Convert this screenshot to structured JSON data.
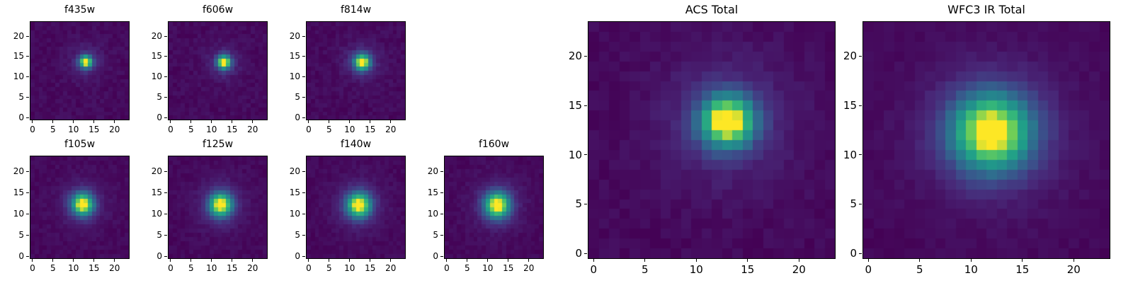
{
  "figure": {
    "background": "#ffffff",
    "text_color": "#000000",
    "colormap": "viridis",
    "viridis_stops": [
      [
        0.0,
        "#440154"
      ],
      [
        0.125,
        "#482878"
      ],
      [
        0.25,
        "#3e4989"
      ],
      [
        0.375,
        "#31688e"
      ],
      [
        0.5,
        "#26828e"
      ],
      [
        0.625,
        "#1f9e89"
      ],
      [
        0.75,
        "#35b779"
      ],
      [
        0.875,
        "#6ece58"
      ],
      [
        1.0,
        "#fde725"
      ]
    ]
  },
  "chart_data": [
    {
      "type": "heatmap",
      "title": "f435w",
      "size": "small",
      "row": 1,
      "col": 1,
      "grid": [
        24,
        24
      ],
      "xticks": [
        0,
        5,
        10,
        15,
        20
      ],
      "yticks": [
        0,
        5,
        10,
        15,
        20
      ],
      "xlim": [
        -0.5,
        23.5
      ],
      "ylim": [
        -0.5,
        23.5
      ],
      "colormap": "viridis",
      "vrange": [
        0,
        1
      ],
      "source_model": {
        "center": [
          13.0,
          13.7
        ],
        "sigma": 1.05,
        "peak": 1.0,
        "halo_amp": 0.12,
        "halo_sigma": 3.0,
        "noise": 0.06,
        "seed": 1
      }
    },
    {
      "type": "heatmap",
      "title": "f606w",
      "size": "small",
      "row": 1,
      "col": 2,
      "grid": [
        24,
        24
      ],
      "xticks": [
        0,
        5,
        10,
        15,
        20
      ],
      "yticks": [
        0,
        5,
        10,
        15,
        20
      ],
      "xlim": [
        -0.5,
        23.5
      ],
      "ylim": [
        -0.5,
        23.5
      ],
      "colormap": "viridis",
      "vrange": [
        0,
        1
      ],
      "source_model": {
        "center": [
          13.0,
          13.6
        ],
        "sigma": 1.15,
        "peak": 1.0,
        "halo_amp": 0.12,
        "halo_sigma": 3.0,
        "noise": 0.06,
        "seed": 2
      }
    },
    {
      "type": "heatmap",
      "title": "f814w",
      "size": "small",
      "row": 1,
      "col": 3,
      "grid": [
        24,
        24
      ],
      "xticks": [
        0,
        5,
        10,
        15,
        20
      ],
      "yticks": [
        0,
        5,
        10,
        15,
        20
      ],
      "xlim": [
        -0.5,
        23.5
      ],
      "ylim": [
        -0.5,
        23.5
      ],
      "colormap": "viridis",
      "vrange": [
        0,
        1
      ],
      "source_model": {
        "center": [
          13.0,
          13.6
        ],
        "sigma": 1.35,
        "peak": 1.0,
        "halo_amp": 0.13,
        "halo_sigma": 3.2,
        "noise": 0.06,
        "seed": 3
      }
    },
    {
      "type": "heatmap",
      "title": "f105w",
      "size": "small",
      "row": 2,
      "col": 1,
      "grid": [
        24,
        24
      ],
      "xticks": [
        0,
        5,
        10,
        15,
        20
      ],
      "yticks": [
        0,
        5,
        10,
        15,
        20
      ],
      "xlim": [
        -0.5,
        23.5
      ],
      "ylim": [
        -0.5,
        23.5
      ],
      "colormap": "viridis",
      "vrange": [
        0,
        1
      ],
      "source_model": {
        "center": [
          12.2,
          12.2
        ],
        "sigma": 1.8,
        "peak": 1.0,
        "halo_amp": 0.12,
        "halo_sigma": 4.0,
        "noise": 0.05,
        "seed": 4
      }
    },
    {
      "type": "heatmap",
      "title": "f125w",
      "size": "small",
      "row": 2,
      "col": 2,
      "grid": [
        24,
        24
      ],
      "xticks": [
        0,
        5,
        10,
        15,
        20
      ],
      "yticks": [
        0,
        5,
        10,
        15,
        20
      ],
      "xlim": [
        -0.5,
        23.5
      ],
      "ylim": [
        -0.5,
        23.5
      ],
      "colormap": "viridis",
      "vrange": [
        0,
        1
      ],
      "source_model": {
        "center": [
          12.2,
          12.1
        ],
        "sigma": 1.9,
        "peak": 1.0,
        "halo_amp": 0.12,
        "halo_sigma": 4.2,
        "noise": 0.05,
        "seed": 5
      }
    },
    {
      "type": "heatmap",
      "title": "f140w",
      "size": "small",
      "row": 2,
      "col": 3,
      "grid": [
        24,
        24
      ],
      "xticks": [
        0,
        5,
        10,
        15,
        20
      ],
      "yticks": [
        0,
        5,
        10,
        15,
        20
      ],
      "xlim": [
        -0.5,
        23.5
      ],
      "ylim": [
        -0.5,
        23.5
      ],
      "colormap": "viridis",
      "vrange": [
        0,
        1
      ],
      "source_model": {
        "center": [
          12.2,
          12.0
        ],
        "sigma": 2.0,
        "peak": 1.0,
        "halo_amp": 0.12,
        "halo_sigma": 4.3,
        "noise": 0.05,
        "seed": 6
      }
    },
    {
      "type": "heatmap",
      "title": "f160w",
      "size": "small",
      "row": 2,
      "col": 4,
      "grid": [
        24,
        24
      ],
      "xticks": [
        0,
        5,
        10,
        15,
        20
      ],
      "yticks": [
        0,
        5,
        10,
        15,
        20
      ],
      "xlim": [
        -0.5,
        23.5
      ],
      "ylim": [
        -0.5,
        23.5
      ],
      "colormap": "viridis",
      "vrange": [
        0,
        1
      ],
      "source_model": {
        "center": [
          12.3,
          12.0
        ],
        "sigma": 2.1,
        "peak": 1.0,
        "halo_amp": 0.12,
        "halo_sigma": 4.4,
        "noise": 0.05,
        "seed": 7
      }
    },
    {
      "type": "heatmap",
      "title": "ACS Total",
      "size": "large",
      "row": 1,
      "col": 5,
      "grid": [
        24,
        24
      ],
      "xticks": [
        0,
        5,
        10,
        15,
        20
      ],
      "yticks": [
        0,
        5,
        10,
        15,
        20
      ],
      "xlim": [
        -0.5,
        23.5
      ],
      "ylim": [
        -0.5,
        23.5
      ],
      "colormap": "viridis",
      "vrange": [
        0,
        1
      ],
      "source_model": {
        "center": [
          13.0,
          13.4
        ],
        "sigma": 1.8,
        "peak": 1.0,
        "halo_amp": 0.15,
        "halo_sigma": 4.5,
        "noise": 0.05,
        "seed": 8
      }
    },
    {
      "type": "heatmap",
      "title": "WFC3 IR Total",
      "size": "large",
      "row": 1,
      "col": 6,
      "grid": [
        24,
        24
      ],
      "xticks": [
        0,
        5,
        10,
        15,
        20
      ],
      "yticks": [
        0,
        5,
        10,
        15,
        20
      ],
      "xlim": [
        -0.5,
        23.5
      ],
      "ylim": [
        -0.5,
        23.5
      ],
      "colormap": "viridis",
      "vrange": [
        0,
        1
      ],
      "source_model": {
        "center": [
          12.0,
          12.3
        ],
        "sigma": 2.7,
        "peak": 1.0,
        "halo_amp": 0.12,
        "halo_sigma": 5.5,
        "noise": 0.04,
        "seed": 9
      }
    }
  ]
}
